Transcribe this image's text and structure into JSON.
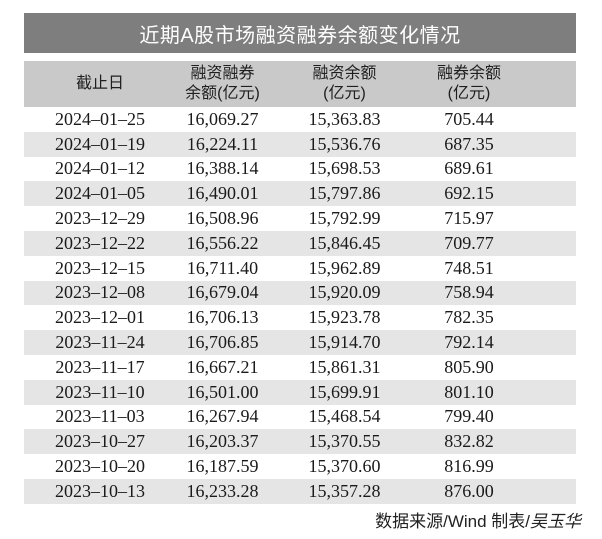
{
  "title": "近期A股市场融资融券余额变化情况",
  "chart_data": {
    "type": "table",
    "title": "近期A股市场融资融券余额变化情况",
    "columns": [
      {
        "line1": "截止日",
        "line2": ""
      },
      {
        "line1": "融资融券",
        "line2": "余额(亿元)"
      },
      {
        "line1": "融资余额",
        "line2": "(亿元)"
      },
      {
        "line1": "融券余额",
        "line2": "(亿元)"
      }
    ],
    "rows": [
      [
        "2024–01–25",
        "16,069.27",
        "15,363.83",
        "705.44"
      ],
      [
        "2024–01–19",
        "16,224.11",
        "15,536.76",
        "687.35"
      ],
      [
        "2024–01–12",
        "16,388.14",
        "15,698.53",
        "689.61"
      ],
      [
        "2024–01–05",
        "16,490.01",
        "15,797.86",
        "692.15"
      ],
      [
        "2023–12–29",
        "16,508.96",
        "15,792.99",
        "715.97"
      ],
      [
        "2023–12–22",
        "16,556.22",
        "15,846.45",
        "709.77"
      ],
      [
        "2023–12–15",
        "16,711.40",
        "15,962.89",
        "748.51"
      ],
      [
        "2023–12–08",
        "16,679.04",
        "15,920.09",
        "758.94"
      ],
      [
        "2023–12–01",
        "16,706.13",
        "15,923.78",
        "782.35"
      ],
      [
        "2023–11–24",
        "16,706.85",
        "15,914.70",
        "792.14"
      ],
      [
        "2023–11–17",
        "16,667.21",
        "15,861.31",
        "805.90"
      ],
      [
        "2023–11–10",
        "16,501.00",
        "15,699.91",
        "801.10"
      ],
      [
        "2023–11–03",
        "16,267.94",
        "15,468.54",
        "799.40"
      ],
      [
        "2023–10–27",
        "16,203.37",
        "15,370.55",
        "832.82"
      ],
      [
        "2023–10–20",
        "16,187.59",
        "15,370.60",
        "816.99"
      ],
      [
        "2023–10–13",
        "16,233.28",
        "15,357.28",
        "876.00"
      ]
    ]
  },
  "footer": {
    "source_label": "数据来源/Wind 制表/",
    "author": "吴玉华"
  },
  "colors": {
    "title_bar_bg": "#7e7e7e",
    "title_text": "#ffffff",
    "header_bg": "#c9c9c9",
    "row_alt_bg": "#e5e5e5",
    "data_text": "#1a1a1a"
  }
}
